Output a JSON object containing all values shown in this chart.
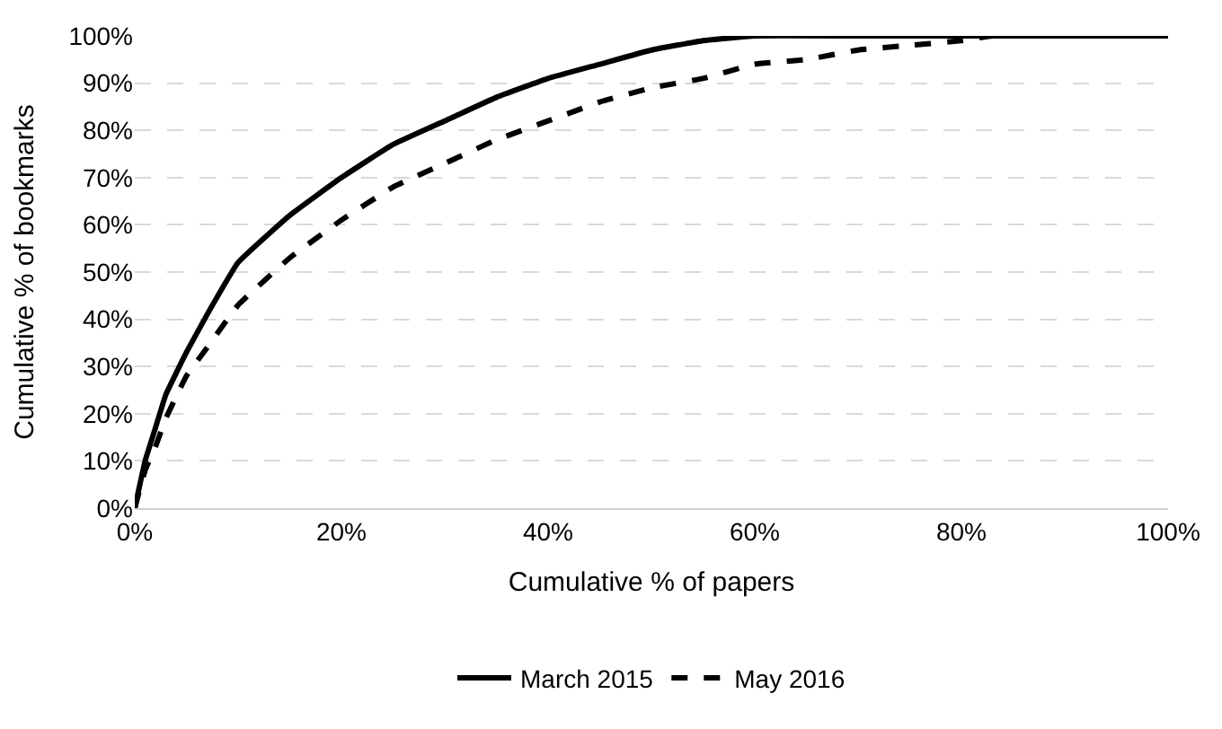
{
  "chart_data": {
    "type": "line",
    "xlabel": "Cumulative % of papers",
    "ylabel": "Cumulative % of bookmarks",
    "xlim": [
      0,
      100
    ],
    "ylim": [
      0,
      100
    ],
    "xticks": [
      {
        "value": 0,
        "label": "0%"
      },
      {
        "value": 20,
        "label": "20%"
      },
      {
        "value": 40,
        "label": "40%"
      },
      {
        "value": 60,
        "label": "60%"
      },
      {
        "value": 80,
        "label": "80%"
      },
      {
        "value": 100,
        "label": "100%"
      }
    ],
    "yticks": [
      {
        "value": 0,
        "label": "0%"
      },
      {
        "value": 10,
        "label": "10%"
      },
      {
        "value": 20,
        "label": "20%"
      },
      {
        "value": 30,
        "label": "30%"
      },
      {
        "value": 40,
        "label": "40%"
      },
      {
        "value": 50,
        "label": "50%"
      },
      {
        "value": 60,
        "label": "60%"
      },
      {
        "value": 70,
        "label": "70%"
      },
      {
        "value": 80,
        "label": "80%"
      },
      {
        "value": 90,
        "label": "90%"
      },
      {
        "value": 100,
        "label": "100%"
      }
    ],
    "grid": "y",
    "legend": "bottom",
    "marker": "none",
    "series": [
      {
        "name": "March 2015",
        "color": "#000000",
        "line_style": "solid",
        "x": [
          0,
          1,
          2,
          3,
          5,
          7,
          10,
          15,
          20,
          25,
          30,
          35,
          40,
          45,
          50,
          55,
          60,
          70,
          80,
          90,
          100
        ],
        "values": [
          0,
          10,
          17,
          24,
          33,
          41,
          52,
          62,
          70,
          77,
          82,
          87,
          91,
          94,
          97,
          99,
          100,
          100,
          100,
          100,
          100
        ]
      },
      {
        "name": "May 2016",
        "color": "#000000",
        "line_style": "dashed",
        "x": [
          0,
          1,
          2,
          3,
          5,
          7,
          10,
          15,
          20,
          25,
          30,
          35,
          40,
          45,
          50,
          55,
          60,
          65,
          70,
          75,
          80,
          83,
          90,
          100
        ],
        "values": [
          0,
          8,
          13,
          19,
          28,
          34,
          43,
          53,
          61,
          68,
          73,
          78,
          82,
          86,
          89,
          91,
          94,
          95,
          97,
          98,
          99,
          100,
          100,
          100
        ]
      }
    ]
  }
}
